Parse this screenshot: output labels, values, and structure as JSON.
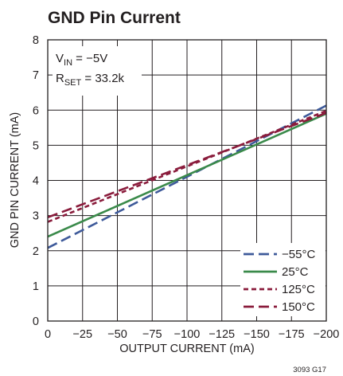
{
  "chart_data": {
    "type": "line",
    "title": "GND Pin Current",
    "xlabel": "OUTPUT CURRENT (mA)",
    "ylabel": "GND PIN CURRENT (mA)",
    "xlim": [
      0,
      -200
    ],
    "ylim": [
      0,
      8
    ],
    "x_ticks": [
      "0",
      "−25",
      "−50",
      "−75",
      "−100",
      "−125",
      "−150",
      "−175",
      "−200"
    ],
    "y_ticks": [
      "0",
      "1",
      "2",
      "3",
      "4",
      "5",
      "6",
      "7",
      "8"
    ],
    "grid": true,
    "legend_position": "bottom-right",
    "annotations": {
      "vin": {
        "main": "V",
        "sub": "IN",
        "rest": " = −5V"
      },
      "rset": {
        "main": "R",
        "sub": "SET",
        "rest": " = 33.2k"
      }
    },
    "figure_code": "3093 G17",
    "series": [
      {
        "name": "−55°C",
        "color": "#3e5a9a",
        "dash": "long",
        "x": [
          0,
          -200
        ],
        "y": [
          2.08,
          6.13
        ]
      },
      {
        "name": "25°C",
        "color": "#3a8a4a",
        "dash": "solid",
        "x": [
          0,
          -200
        ],
        "y": [
          2.4,
          5.9
        ]
      },
      {
        "name": "125°C",
        "color": "#8a1c3c",
        "dash": "short",
        "x": [
          0,
          -200
        ],
        "y": [
          2.82,
          5.98
        ]
      },
      {
        "name": "150°C",
        "color": "#8a1c3c",
        "dash": "long",
        "x": [
          0,
          -200
        ],
        "y": [
          2.95,
          5.92
        ]
      }
    ]
  }
}
